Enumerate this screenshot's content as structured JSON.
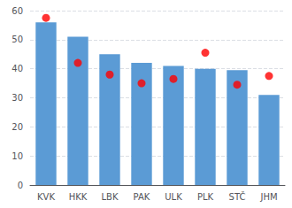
{
  "chart_data": {
    "type": "bar",
    "categories": [
      "KVK",
      "HKK",
      "LBK",
      "PAK",
      "ULK",
      "PLK",
      "STČ",
      "JHM"
    ],
    "series": [
      {
        "type": "bar",
        "color": "#5b9bd5",
        "values": [
          56,
          51,
          45,
          42,
          41,
          40,
          39.5,
          31
        ]
      },
      {
        "type": "scatter",
        "color": "#ff0000",
        "values": [
          57.5,
          42,
          38,
          35,
          36.5,
          45.5,
          34.5,
          37.5
        ]
      }
    ],
    "ylim": [
      0,
      60
    ],
    "yticks": [
      0,
      10,
      20,
      30,
      40,
      50,
      60
    ],
    "grid": true
  }
}
